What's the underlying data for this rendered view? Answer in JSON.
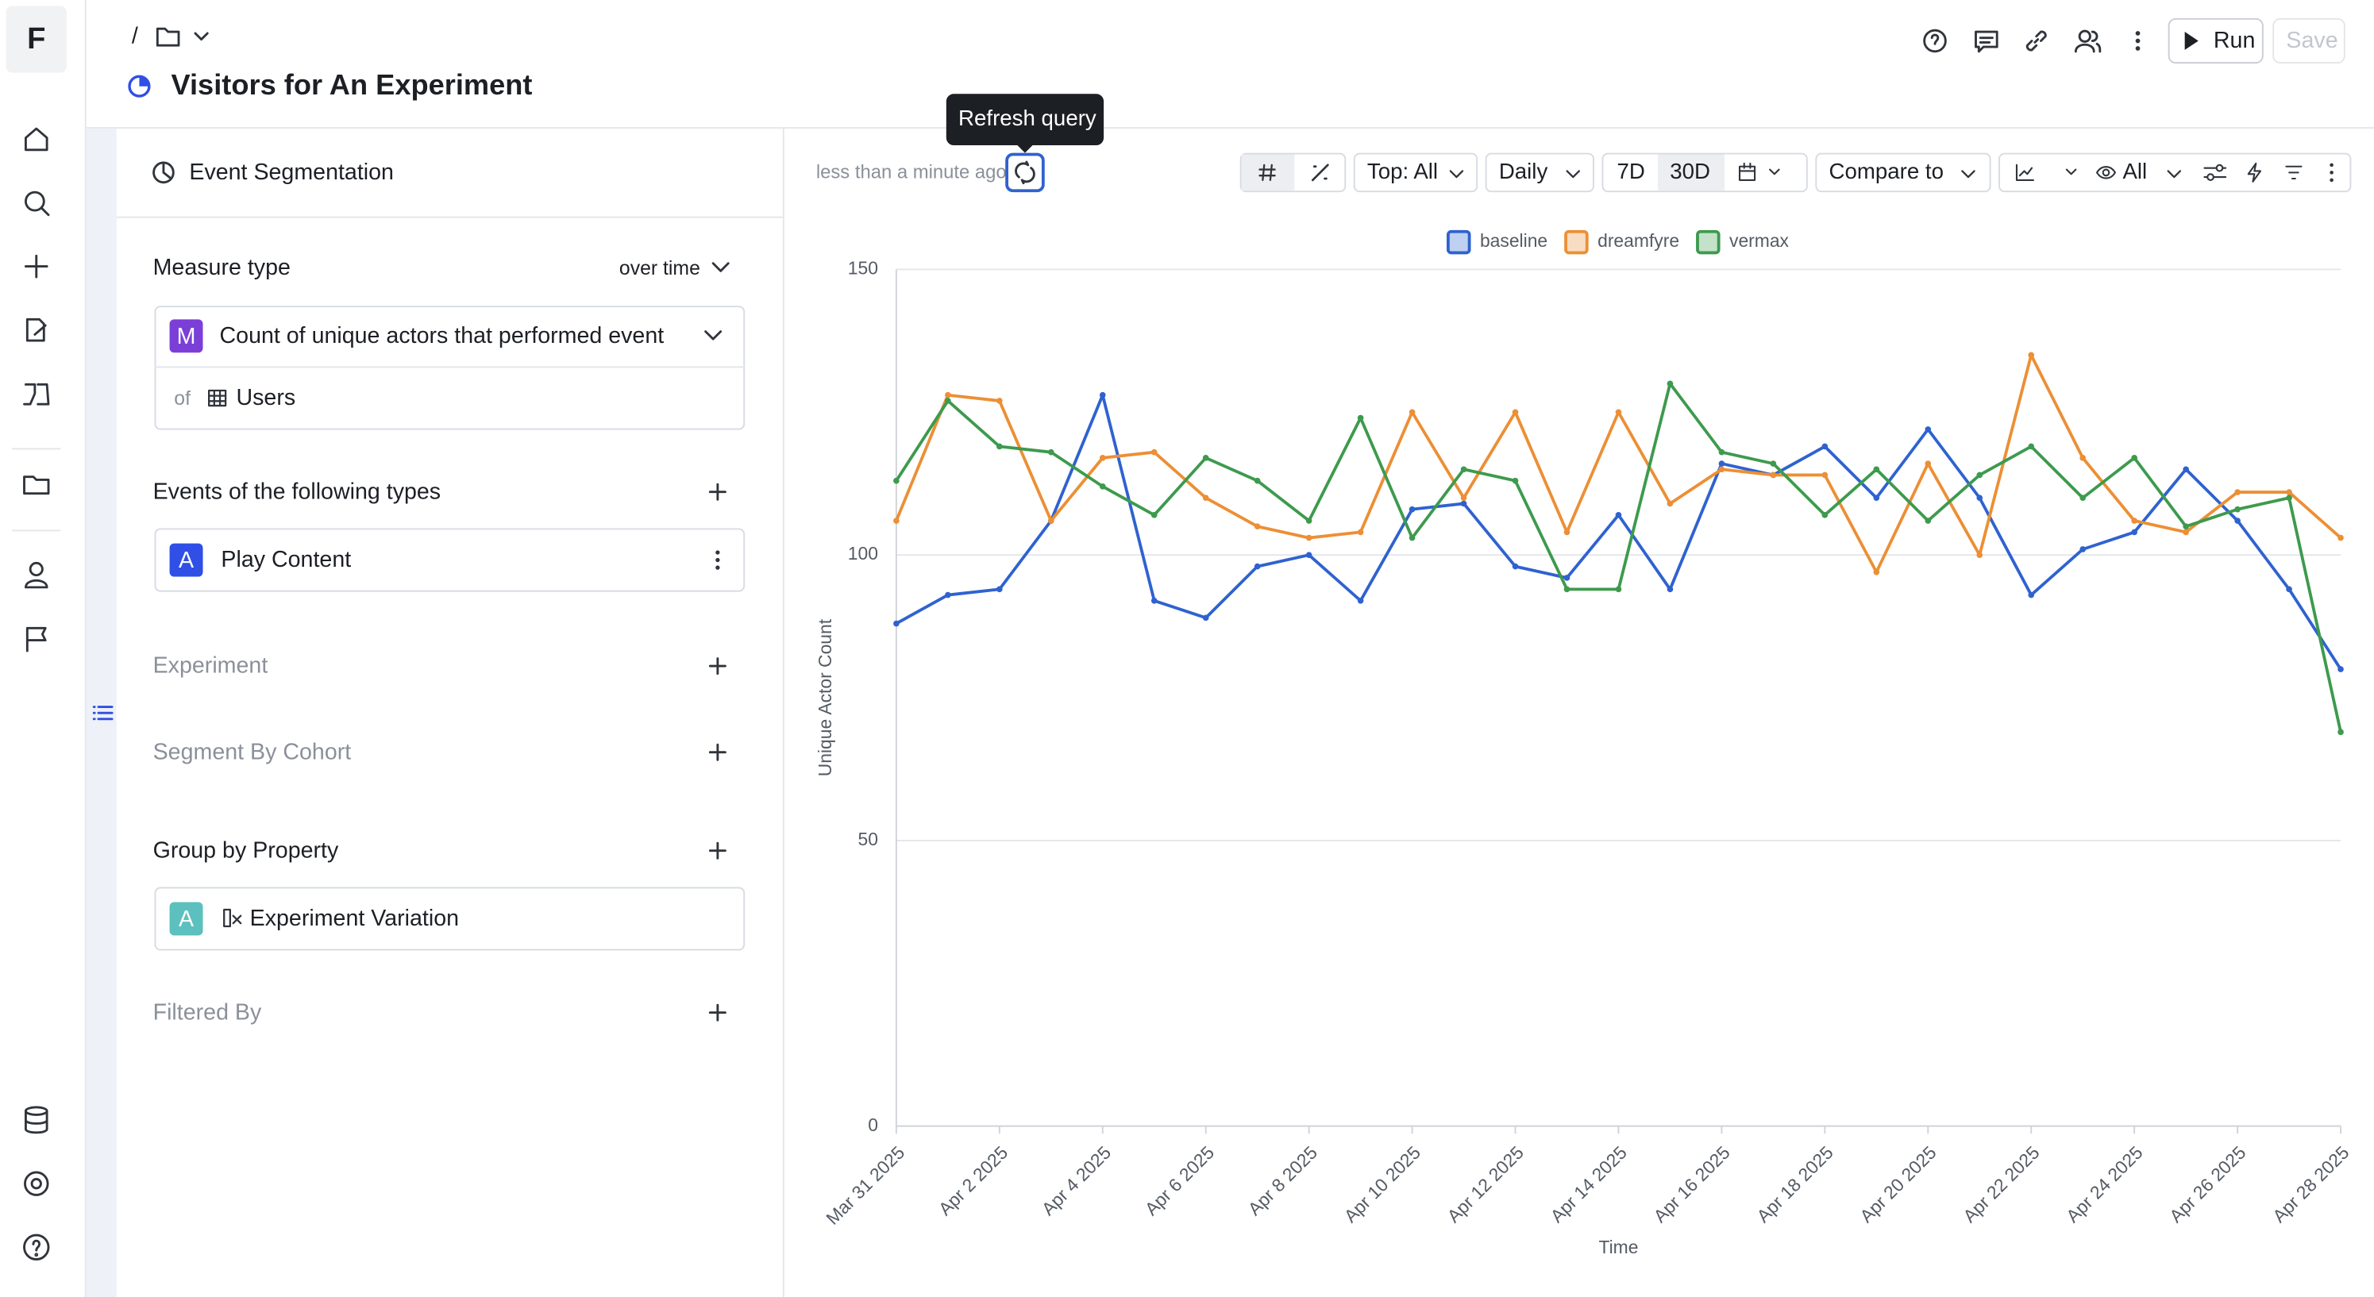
{
  "header": {
    "breadcrumb": "/",
    "title": "Visitors for An Experiment",
    "run": "Run",
    "save": "Save",
    "logo": "F"
  },
  "panel": {
    "heading": "Event Segmentation",
    "measure_type": "Measure type",
    "measure_mode": "over time",
    "measure_badge": "M",
    "measure": "Count of unique actors that performed event",
    "of": "of",
    "entity": "Users",
    "events_heading": "Events of the following types",
    "event_badge": "A",
    "event": "Play Content",
    "experiment": "Experiment",
    "segment": "Segment By Cohort",
    "group_heading": "Group by Property",
    "group_badge": "A",
    "group": "Experiment Variation",
    "filtered": "Filtered By"
  },
  "toolbar": {
    "updated": "less than a minute ago",
    "tooltip": "Refresh query",
    "top": "Top: All",
    "interval": "Daily",
    "range_7": "7D",
    "range_30": "30D",
    "compare": "Compare to",
    "visibility": "All"
  },
  "chart_data": {
    "type": "line",
    "x_label": "Time",
    "y_label": "Unique Actor Count",
    "categories": [
      "Mar 31 2025",
      null,
      "Apr 2 2025",
      null,
      "Apr 4 2025",
      null,
      "Apr 6 2025",
      null,
      "Apr 8 2025",
      null,
      "Apr 10 2025",
      null,
      "Apr 12 2025",
      null,
      "Apr 14 2025",
      null,
      "Apr 16 2025",
      null,
      "Apr 18 2025",
      null,
      "Apr 20 2025",
      null,
      "Apr 22 2025",
      null,
      "Apr 24 2025",
      null,
      "Apr 26 2025",
      null,
      "Apr 28 2025"
    ],
    "series": [
      {
        "name": "baseline",
        "color": "#2f62d0",
        "values": [
          88,
          93,
          94,
          106,
          128,
          92,
          89,
          98,
          100,
          92,
          108,
          109,
          98,
          96,
          107,
          94,
          116,
          114,
          119,
          110,
          122,
          110,
          93,
          101,
          104,
          115,
          106,
          94,
          80
        ]
      },
      {
        "name": "dreamfyre",
        "color": "#ec8f35",
        "values": [
          106,
          128,
          127,
          106,
          117,
          118,
          110,
          105,
          103,
          104,
          125,
          110,
          125,
          104,
          125,
          109,
          115,
          114,
          114,
          97,
          116,
          100,
          135,
          117,
          106,
          104,
          111,
          111,
          103
        ]
      },
      {
        "name": "vermax",
        "color": "#3d9a4e",
        "values": [
          113,
          127,
          119,
          118,
          112,
          107,
          117,
          113,
          106,
          124,
          103,
          115,
          113,
          94,
          94,
          130,
          118,
          116,
          107,
          115,
          106,
          114,
          119,
          110,
          117,
          105,
          108,
          110,
          69
        ]
      }
    ],
    "ylim": [
      0,
      150
    ],
    "yticks": [
      0,
      50,
      100,
      150
    ],
    "grid": true,
    "legend": "top"
  }
}
